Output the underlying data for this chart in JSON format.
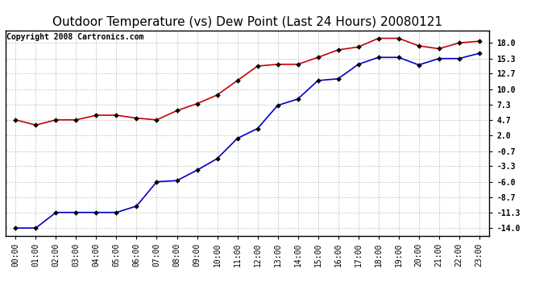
{
  "title": "Outdoor Temperature (vs) Dew Point (Last 24 Hours) 20080121",
  "copyright": "Copyright 2008 Cartronics.com",
  "x_labels": [
    "00:00",
    "01:00",
    "02:00",
    "03:00",
    "04:00",
    "05:00",
    "06:00",
    "07:00",
    "08:00",
    "09:00",
    "10:00",
    "11:00",
    "12:00",
    "13:00",
    "14:00",
    "15:00",
    "16:00",
    "17:00",
    "18:00",
    "19:00",
    "20:00",
    "21:00",
    "22:00",
    "23:00"
  ],
  "temp_data": [
    4.7,
    3.8,
    4.7,
    4.7,
    5.5,
    5.5,
    5.0,
    4.7,
    6.3,
    7.5,
    9.0,
    11.5,
    14.0,
    14.3,
    14.3,
    15.5,
    16.8,
    17.3,
    18.8,
    18.8,
    17.5,
    17.0,
    18.0,
    18.3
  ],
  "dew_data": [
    -14.0,
    -14.0,
    -11.3,
    -11.3,
    -11.3,
    -11.3,
    -10.2,
    -6.0,
    -5.8,
    -4.0,
    -2.0,
    1.5,
    3.2,
    7.2,
    8.3,
    11.5,
    11.8,
    14.3,
    15.5,
    15.5,
    14.2,
    15.3,
    15.3,
    16.2
  ],
  "temp_color": "#cc0000",
  "dew_color": "#0000cc",
  "bg_color": "#ffffff",
  "grid_color": "#aaaaaa",
  "yticks": [
    18.0,
    15.3,
    12.7,
    10.0,
    7.3,
    4.7,
    2.0,
    -0.7,
    -3.3,
    -6.0,
    -8.7,
    -11.3,
    -14.0
  ],
  "ylim": [
    -15.3,
    20.2
  ],
  "title_fontsize": 11,
  "copyright_fontsize": 7,
  "tick_fontsize": 7,
  "ytick_fontsize": 7,
  "markersize": 3
}
